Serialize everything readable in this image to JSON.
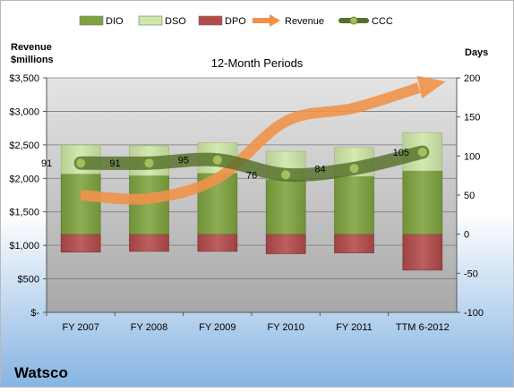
{
  "colors": {
    "dio": "#7ea33e",
    "dso": "#cfe7a8",
    "dpo": "#b34a4a",
    "revenue": "#f0924a",
    "ccc": "#55702a",
    "plot_background_top": "#e4e4e4",
    "plot_background_bottom": "#a8a8a8",
    "frame_background_top": "#ffffff",
    "frame_background_bottom": "#86b4e2",
    "text": "#000000"
  },
  "company": "Watsco",
  "chart_data": {
    "type": "bar",
    "title": "12-Month Periods",
    "categories": [
      "FY 2007",
      "FY 2008",
      "FY 2009",
      "FY 2010",
      "FY 2011",
      "TTM 6-2012"
    ],
    "left_axis": {
      "label_line1": "Revenue",
      "label_line2": "$millions",
      "ticks": [
        "$-",
        "$500",
        "$1,000",
        "$1,500",
        "$2,000",
        "$2,500",
        "$3,000",
        "$3,500"
      ],
      "ylim": [
        0,
        3500
      ]
    },
    "right_axis": {
      "label": "Days",
      "ticks": [
        "-100",
        "-50",
        "0",
        "50",
        "100",
        "150",
        "200"
      ],
      "ylim": [
        -100,
        200
      ]
    },
    "legend": {
      "position": "top",
      "items": [
        "DIO",
        "DSO",
        "DPO",
        "Revenue",
        "CCC"
      ]
    },
    "grid": true,
    "series": [
      {
        "name": "DIO",
        "type": "stacked-bar",
        "axis": "days",
        "values": [
          77,
          75,
          78,
          70,
          74,
          81
        ]
      },
      {
        "name": "DSO",
        "type": "stacked-bar",
        "axis": "days",
        "values": [
          37,
          38,
          39,
          36,
          37,
          49
        ]
      },
      {
        "name": "DPO",
        "type": "stacked-bar",
        "axis": "days",
        "values": [
          -23,
          -22,
          -22,
          -25,
          -24,
          -46
        ]
      },
      {
        "name": "Revenue",
        "type": "arrow-line",
        "axis": "revenue",
        "values": [
          1750,
          1700,
          2000,
          2850,
          3050,
          3380
        ]
      },
      {
        "name": "CCC",
        "type": "line",
        "axis": "days",
        "values": [
          91,
          91,
          95,
          76,
          84,
          105
        ],
        "labels": [
          "91",
          "91",
          "95",
          "76",
          "84",
          "105"
        ]
      }
    ]
  }
}
